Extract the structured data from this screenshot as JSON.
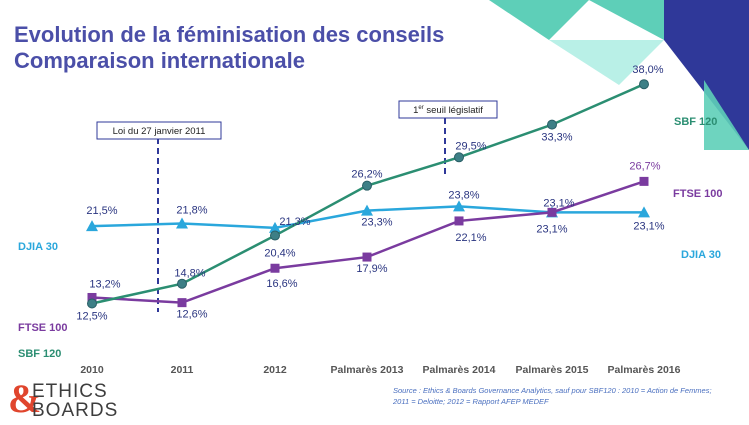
{
  "title_line1": "Evolution de la féminisation des conseils",
  "title_line2": "Comparaison internationale",
  "colors": {
    "title": "#4b4fa8",
    "sbf": "#2b8e72",
    "ftse": "#7a3b9f",
    "djia": "#2aa7dc",
    "label": "#2a3580",
    "decor_teal": "#5ecfb8",
    "decor_navy": "#2f3899"
  },
  "chart_data": {
    "type": "line",
    "categories": [
      "2010",
      "2011",
      "2012",
      "Palmarès 2013",
      "Palmarès 2014",
      "Palmarès 2015",
      "Palmarès 2016"
    ],
    "series": [
      {
        "name": "SBF 120",
        "key": "sbf",
        "marker": "circle",
        "values": [
          12.5,
          14.8,
          20.4,
          26.2,
          29.5,
          33.3,
          38.0
        ],
        "labels": [
          "12,5%",
          "14,8%",
          "20,4%",
          "26,2%",
          "29,5%",
          "33,3%",
          "38,0%"
        ]
      },
      {
        "name": "FTSE 100",
        "key": "ftse",
        "marker": "square",
        "values": [
          13.2,
          12.6,
          16.6,
          17.9,
          22.1,
          23.1,
          26.7
        ],
        "labels": [
          "13,2%",
          "12,6%",
          "16,6%",
          "17,9%",
          "22,1%",
          "23,1%",
          "26,7%"
        ]
      },
      {
        "name": "DJIA 30",
        "key": "djia",
        "marker": "triangle",
        "values": [
          21.5,
          21.8,
          21.3,
          23.3,
          23.8,
          23.1,
          23.1
        ],
        "labels": [
          "21,5%",
          "21,8%",
          "21,3%",
          "23,3%",
          "23,8%",
          "23,1%",
          "23,1%"
        ]
      }
    ],
    "ylim": [
      10,
      40
    ],
    "annotations": [
      {
        "text": "Loi du 27 janvier 2011",
        "between": [
          "2010",
          "2011"
        ]
      },
      {
        "text": "1er seuil législatif",
        "sup": "er",
        "base": "1",
        "rest": " seuil législatif",
        "between": [
          "2013",
          "2014"
        ]
      }
    ]
  },
  "series_labels": {
    "sbf_left": "SBF 120",
    "sbf_right": "SBF 120",
    "ftse_left": "FTSE 100",
    "ftse_right": "FTSE 100",
    "djia_left": "DJIA 30",
    "djia_right": "DJIA 30"
  },
  "annotation_loi": "Loi du 27 janvier 2011",
  "annotation_seuil_base": "1",
  "annotation_seuil_sup": "er",
  "annotation_seuil_rest": " seuil législatif",
  "logo": {
    "line1": "ETHICS",
    "line2": "BOARDS",
    "amp": "&"
  },
  "source_line1": "Source : Ethics & Boards Governance Analytics, sauf pour SBF120 : 2010 = Action de Femmes;",
  "source_line2": "2011 = Deloitte; 2012 = Rapport AFEP MEDEF"
}
